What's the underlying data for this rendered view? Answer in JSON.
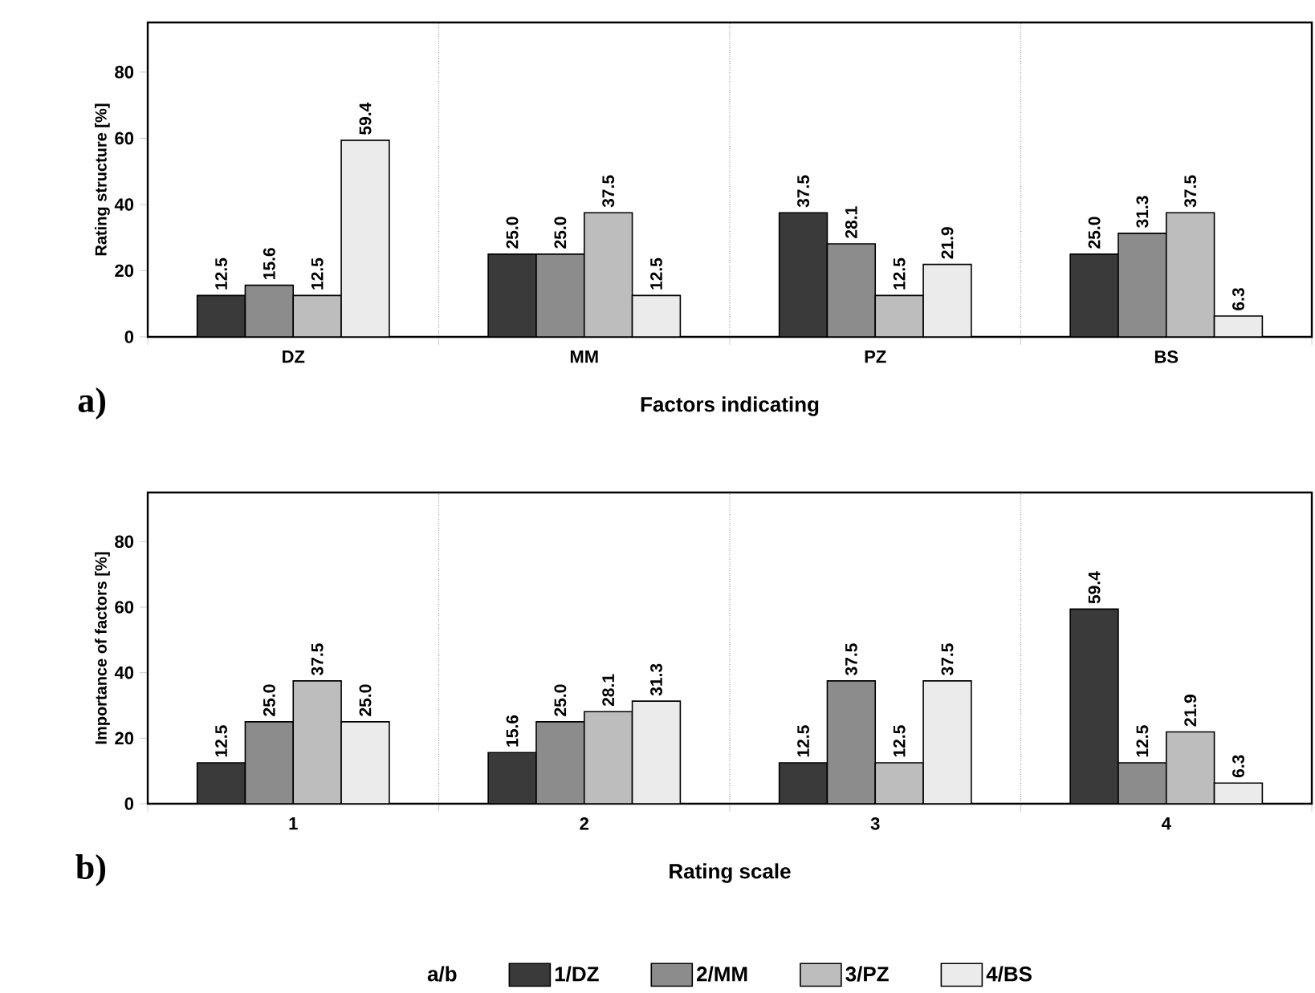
{
  "chart_data": [
    {
      "type": "bar",
      "xlabel": "Factors indicating",
      "ylabel": "Rating structure [%]",
      "categories": [
        "DZ",
        "MM",
        "PZ",
        "BS"
      ],
      "series": [
        {
          "color": "#3a3a3a",
          "values": [
            12.5,
            25.0,
            37.5,
            25.0
          ],
          "value_labels": [
            "12.5",
            "25.0",
            "37.5",
            "25.0"
          ]
        },
        {
          "color": "#8c8c8c",
          "values": [
            15.6,
            25.0,
            28.1,
            31.3
          ],
          "value_labels": [
            "15.6",
            "25.0",
            "28.1",
            "31.3"
          ]
        },
        {
          "color": "#bdbdbd",
          "values": [
            12.5,
            37.5,
            12.5,
            37.5
          ],
          "value_labels": [
            "12.5",
            "37.5",
            "12.5",
            "37.5"
          ]
        },
        {
          "color": "#ebebeb",
          "values": [
            59.4,
            12.5,
            21.9,
            6.3
          ],
          "value_labels": [
            "59.4",
            "12.5",
            "21.9",
            "6.3"
          ]
        }
      ],
      "ylim": [
        0,
        95
      ],
      "yticks": [
        0,
        20,
        40,
        60,
        80
      ],
      "grid": "x",
      "annotations": [
        "a)"
      ]
    },
    {
      "type": "bar",
      "xlabel": "Rating scale",
      "ylabel": "Importance of factors [%]",
      "categories": [
        "1",
        "2",
        "3",
        "4"
      ],
      "legend_title": "a/b",
      "series": [
        {
          "name": "1/DZ",
          "color": "#3a3a3a",
          "values": [
            12.5,
            15.6,
            12.5,
            59.4
          ],
          "value_labels": [
            "12.5",
            "15.6",
            "12.5",
            "59.4"
          ]
        },
        {
          "name": "2/MM",
          "color": "#8c8c8c",
          "values": [
            25.0,
            25.0,
            37.5,
            12.5
          ],
          "value_labels": [
            "25.0",
            "25.0",
            "37.5",
            "12.5"
          ]
        },
        {
          "name": "3/PZ",
          "color": "#bdbdbd",
          "values": [
            37.5,
            28.1,
            12.5,
            21.9
          ],
          "value_labels": [
            "37.5",
            "28.1",
            "12.5",
            "21.9"
          ]
        },
        {
          "name": "4/BS",
          "color": "#ebebeb",
          "values": [
            25.0,
            31.3,
            37.5,
            6.3
          ],
          "value_labels": [
            "25.0",
            "31.3",
            "37.5",
            "6.3"
          ]
        }
      ],
      "ylim": [
        0,
        95
      ],
      "yticks": [
        0,
        20,
        40,
        60,
        80
      ],
      "grid": "x",
      "legend": "bottom",
      "annotations": [
        "b)"
      ]
    }
  ]
}
